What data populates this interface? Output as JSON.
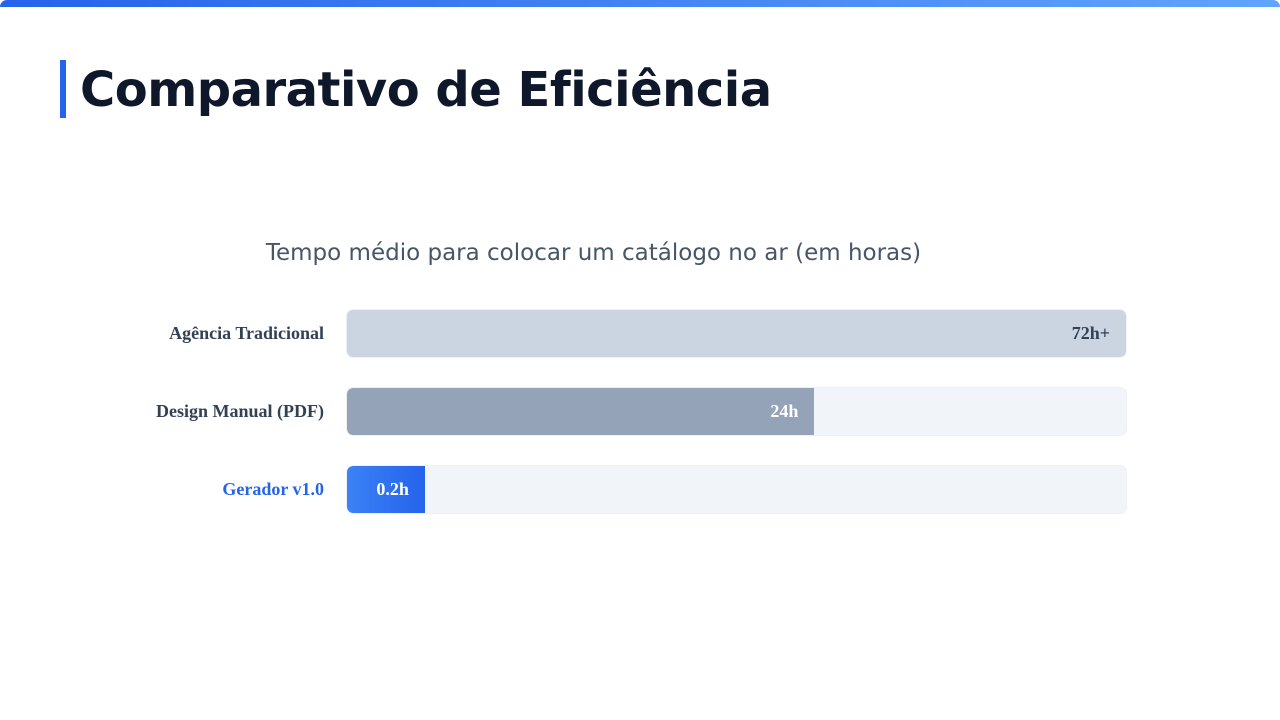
{
  "title": "Comparativo de Eficiência",
  "colors": {
    "accent": "#2563eb",
    "title": "#0f172a"
  },
  "chart_data": {
    "type": "bar",
    "orientation": "horizontal",
    "title": "Tempo médio para colocar um catálogo no ar (em horas)",
    "categories": [
      "Agência Tradicional",
      "Design Manual (PDF)",
      "Gerador v1.0"
    ],
    "values": [
      72,
      24,
      0.2
    ],
    "value_labels": [
      "72h+",
      "24h",
      "0.2h"
    ],
    "fill_percent": [
      100,
      60,
      10
    ],
    "bar_colors": [
      "#cbd5e1",
      "#94a3b8",
      "#2563eb"
    ],
    "label_colors": [
      "#334155",
      "#334155",
      "#2563eb"
    ],
    "value_label_colors": [
      "#334155",
      "#ffffff",
      "#ffffff"
    ],
    "grid": false
  }
}
